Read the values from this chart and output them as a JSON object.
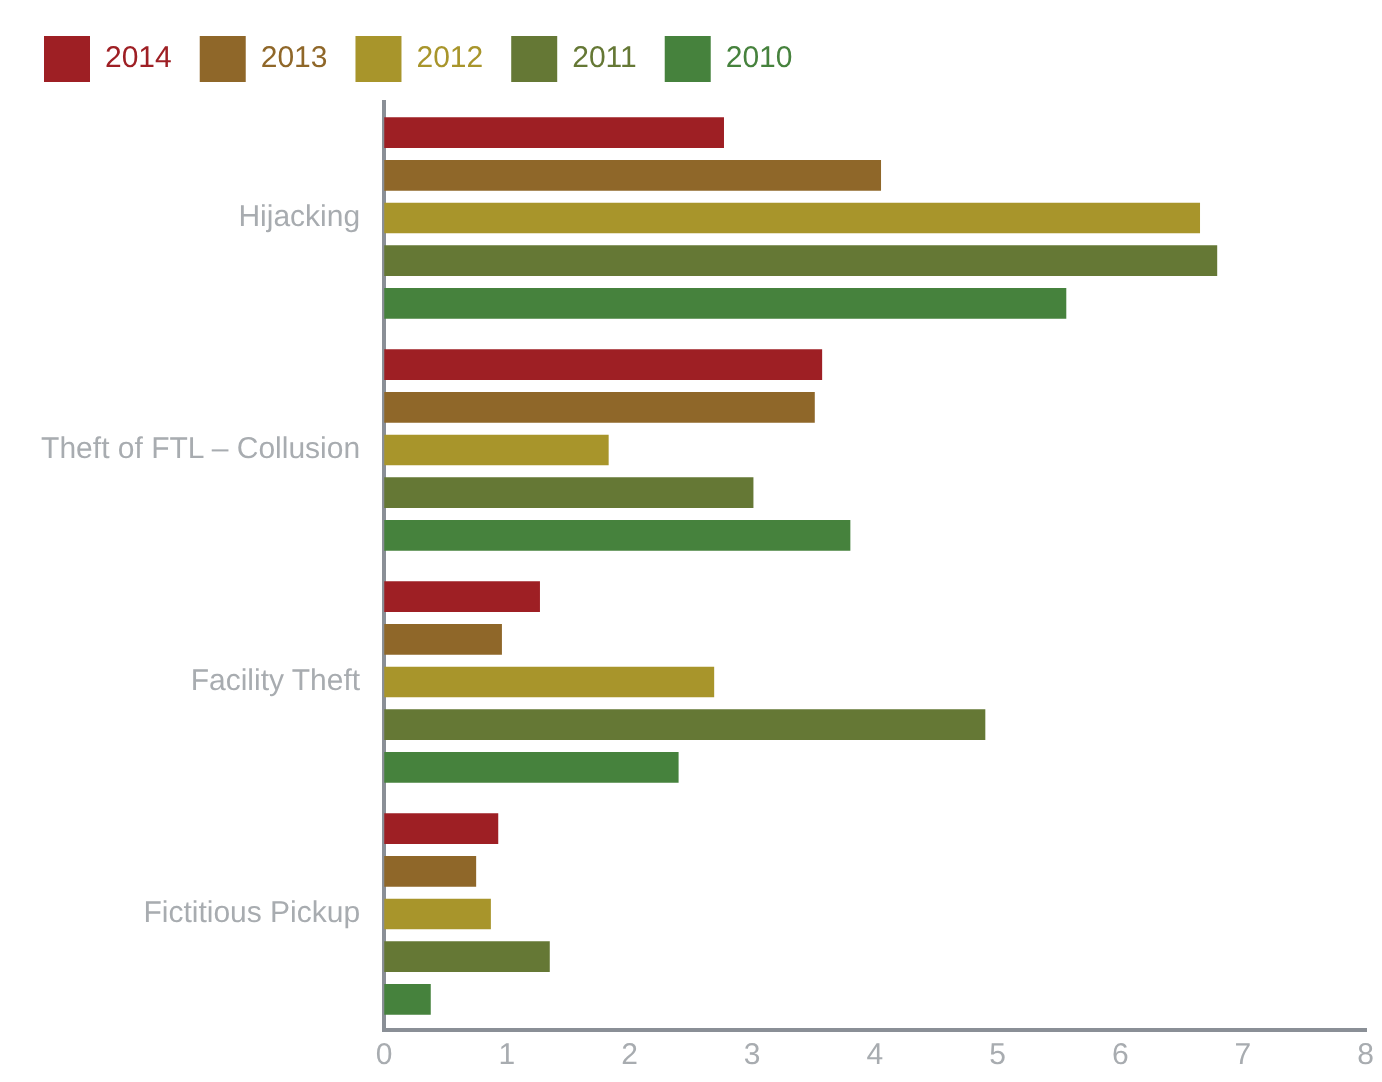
{
  "chart_data": {
    "type": "bar",
    "orientation": "horizontal",
    "categories": [
      "Hijacking",
      "Theft of FTL – Collusion",
      "Facility Theft",
      "Fictitious Pickup"
    ],
    "series": [
      {
        "name": "2014",
        "color": "#9e1f24",
        "values": [
          2.77,
          3.57,
          1.27,
          0.93
        ]
      },
      {
        "name": "2013",
        "color": "#8f6729",
        "values": [
          4.05,
          3.51,
          0.96,
          0.75
        ]
      },
      {
        "name": "2012",
        "color": "#a8952b",
        "values": [
          6.65,
          1.83,
          2.69,
          0.87
        ]
      },
      {
        "name": "2011",
        "color": "#657835",
        "values": [
          6.79,
          3.01,
          4.9,
          1.35
        ]
      },
      {
        "name": "2010",
        "color": "#46823d",
        "values": [
          5.56,
          3.8,
          2.4,
          0.38
        ]
      }
    ],
    "xlim": [
      0,
      8
    ],
    "xticks": [
      0,
      1,
      2,
      3,
      4,
      5,
      6,
      7,
      8
    ],
    "grid": false,
    "legend": "top left"
  }
}
